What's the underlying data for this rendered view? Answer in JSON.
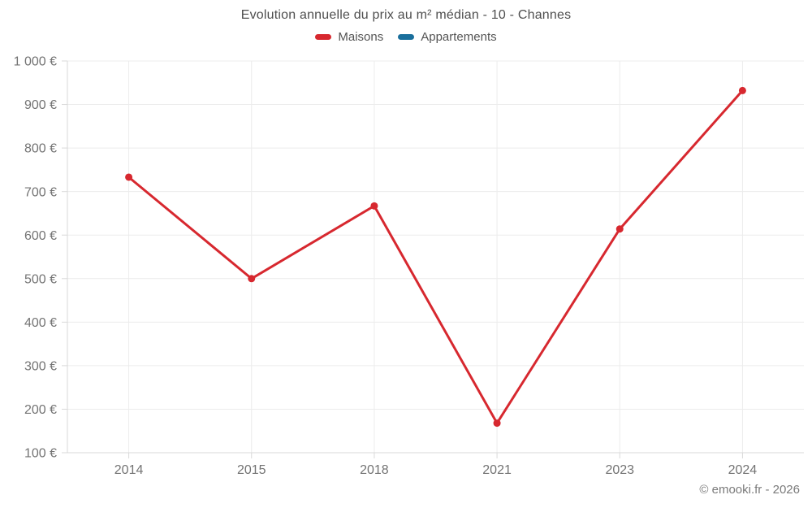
{
  "header": {
    "title": "Evolution annuelle du prix au m² médian - 10 - Channes"
  },
  "legend": {
    "maisons": "Maisons",
    "appartements": "Appartements"
  },
  "footer": {
    "text": "© emooki.fr - 2026"
  },
  "colors": {
    "maisons": "#d7282f",
    "appartements": "#1a6f9c",
    "grid": "#ececec",
    "axis": "#d9d9d9",
    "tick_text": "#737373",
    "title_text": "#4e4e4e"
  },
  "chart_data": {
    "type": "line",
    "title": "Evolution annuelle du prix au m² médian - 10 - Channes",
    "xlabel": "",
    "ylabel": "",
    "categories": [
      "2014",
      "2015",
      "2018",
      "2021",
      "2023",
      "2024"
    ],
    "series": [
      {
        "name": "Maisons",
        "color": "#d7282f",
        "values": [
          733,
          500,
          667,
          168,
          614,
          932
        ]
      },
      {
        "name": "Appartements",
        "color": "#1a6f9c",
        "values": []
      }
    ],
    "ylim": [
      100,
      1000
    ],
    "y_ticks": {
      "values": [
        100,
        200,
        300,
        400,
        500,
        600,
        700,
        800,
        900,
        1000
      ],
      "labels": [
        "100 €",
        "200 €",
        "300 €",
        "400 €",
        "500 €",
        "600 €",
        "700 €",
        "800 €",
        "900 €",
        "1 000 €"
      ]
    },
    "grid": true,
    "legend_position": "top",
    "currency": "€"
  }
}
